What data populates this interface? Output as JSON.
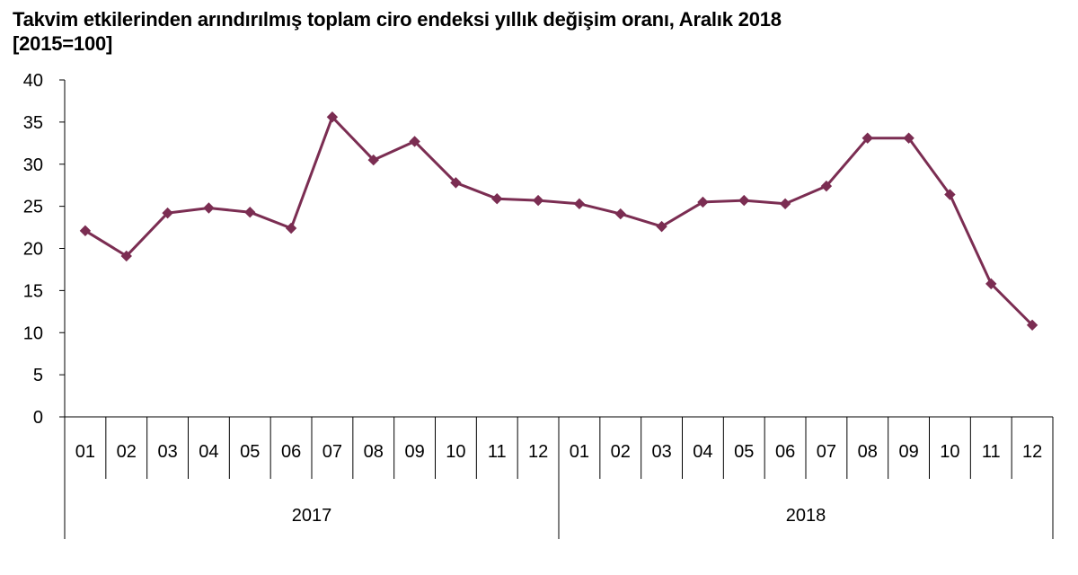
{
  "chart_data": {
    "type": "line",
    "title": "Takvim etkilerinden arındırılmış toplam ciro endeksi yıllık değişim oranı, Aralık 2018",
    "subtitle": "[2015=100]",
    "ylim": [
      0,
      40
    ],
    "yticks": [
      0,
      5,
      10,
      15,
      20,
      25,
      30,
      35,
      40
    ],
    "grid": false,
    "line_color": "#7b2d52",
    "groups": [
      {
        "label": "2017",
        "months": [
          "01",
          "02",
          "03",
          "04",
          "05",
          "06",
          "07",
          "08",
          "09",
          "10",
          "11",
          "12"
        ]
      },
      {
        "label": "2018",
        "months": [
          "01",
          "02",
          "03",
          "04",
          "05",
          "06",
          "07",
          "08",
          "09",
          "10",
          "11",
          "12"
        ]
      }
    ],
    "values": [
      22.1,
      19.1,
      24.2,
      24.8,
      24.3,
      22.4,
      35.6,
      30.5,
      32.7,
      27.8,
      25.9,
      25.7,
      25.3,
      24.1,
      22.6,
      25.5,
      25.7,
      25.3,
      27.4,
      33.1,
      33.1,
      26.4,
      15.8,
      10.9
    ]
  }
}
